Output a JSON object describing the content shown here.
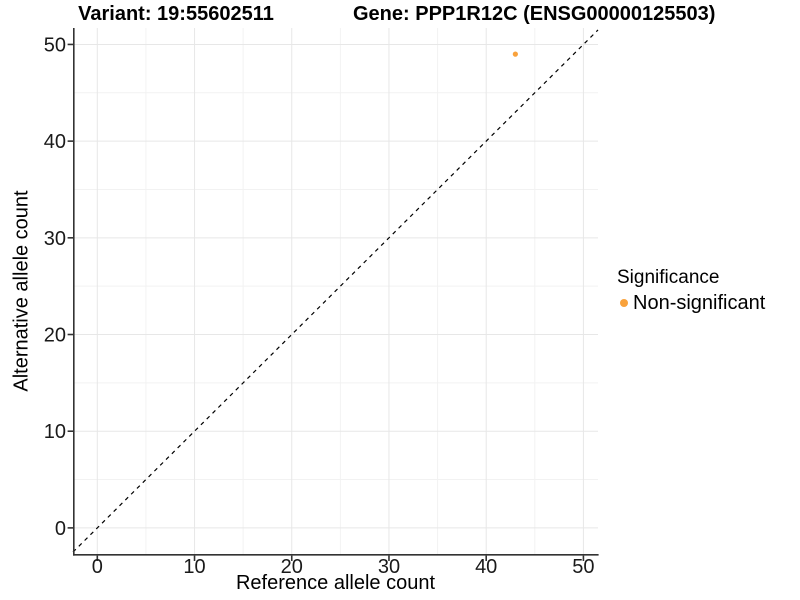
{
  "chart_data": {
    "type": "scatter",
    "title_left": "Variant: 19:55602511",
    "title_right": "Gene: PPP1R12C (ENSG00000125503)",
    "xlabel": "Reference allele count",
    "ylabel": "Alternative allele count",
    "xlim": [
      -2.5,
      51.5
    ],
    "ylim": [
      -2.7,
      51.7
    ],
    "xticks": [
      0,
      10,
      20,
      30,
      40,
      50
    ],
    "yticks": [
      0,
      10,
      20,
      30,
      40,
      50
    ],
    "minor_xticks": [
      5,
      15,
      25,
      35,
      45
    ],
    "minor_yticks": [
      5,
      15,
      25,
      35,
      45
    ],
    "grid": true,
    "identity_line": {
      "style": "dashed",
      "color": "#000000",
      "from": -2.5,
      "to": 51.5
    },
    "points": [
      {
        "x": 43,
        "y": 49,
        "series": "Non-significant"
      }
    ],
    "legend": {
      "title": "Significance",
      "position": "right",
      "items": [
        {
          "label": "Non-significant",
          "color": "#F9A23C"
        }
      ]
    },
    "colors": {
      "point": "#F9A23C",
      "grid_major": "#E7E7E7",
      "grid_minor": "#F2F2F2",
      "axis": "#333333",
      "background": "#FFFFFF"
    }
  }
}
